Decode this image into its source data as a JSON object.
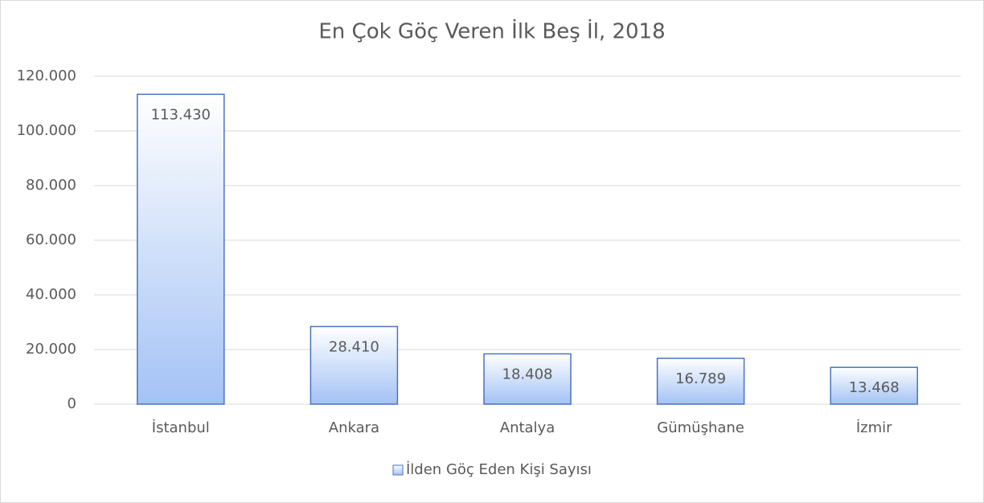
{
  "chart_data": {
    "type": "bar",
    "title": "En Çok Göç Veren İlk Beş İl, 2018",
    "categories": [
      "İstanbul",
      "Ankara",
      "Antalya",
      "Gümüşhane",
      "İzmir"
    ],
    "series": [
      {
        "name": "İlden Göç Eden Kişi Sayısı",
        "color": "#a3c2f5",
        "edgecolor": "#4a72c4",
        "values": [
          113430,
          28410,
          18408,
          16789,
          13468
        ],
        "value_labels": [
          "113.430",
          "28.410",
          "18.408",
          "16.789",
          "13.468"
        ]
      }
    ],
    "ylim": [
      0,
      120000
    ],
    "yticks": [
      0,
      {
        "value": 20000,
        "label": "20.000"
      },
      {
        "value": 40000,
        "label": "40.000"
      },
      {
        "value": 60000,
        "label": "60.000"
      },
      {
        "value": 80000,
        "label": "80.000"
      },
      {
        "value": 100000,
        "label": "100.000"
      },
      {
        "value": 120000,
        "label": "120.000"
      }
    ],
    "grid": true,
    "legend": "bottom"
  }
}
